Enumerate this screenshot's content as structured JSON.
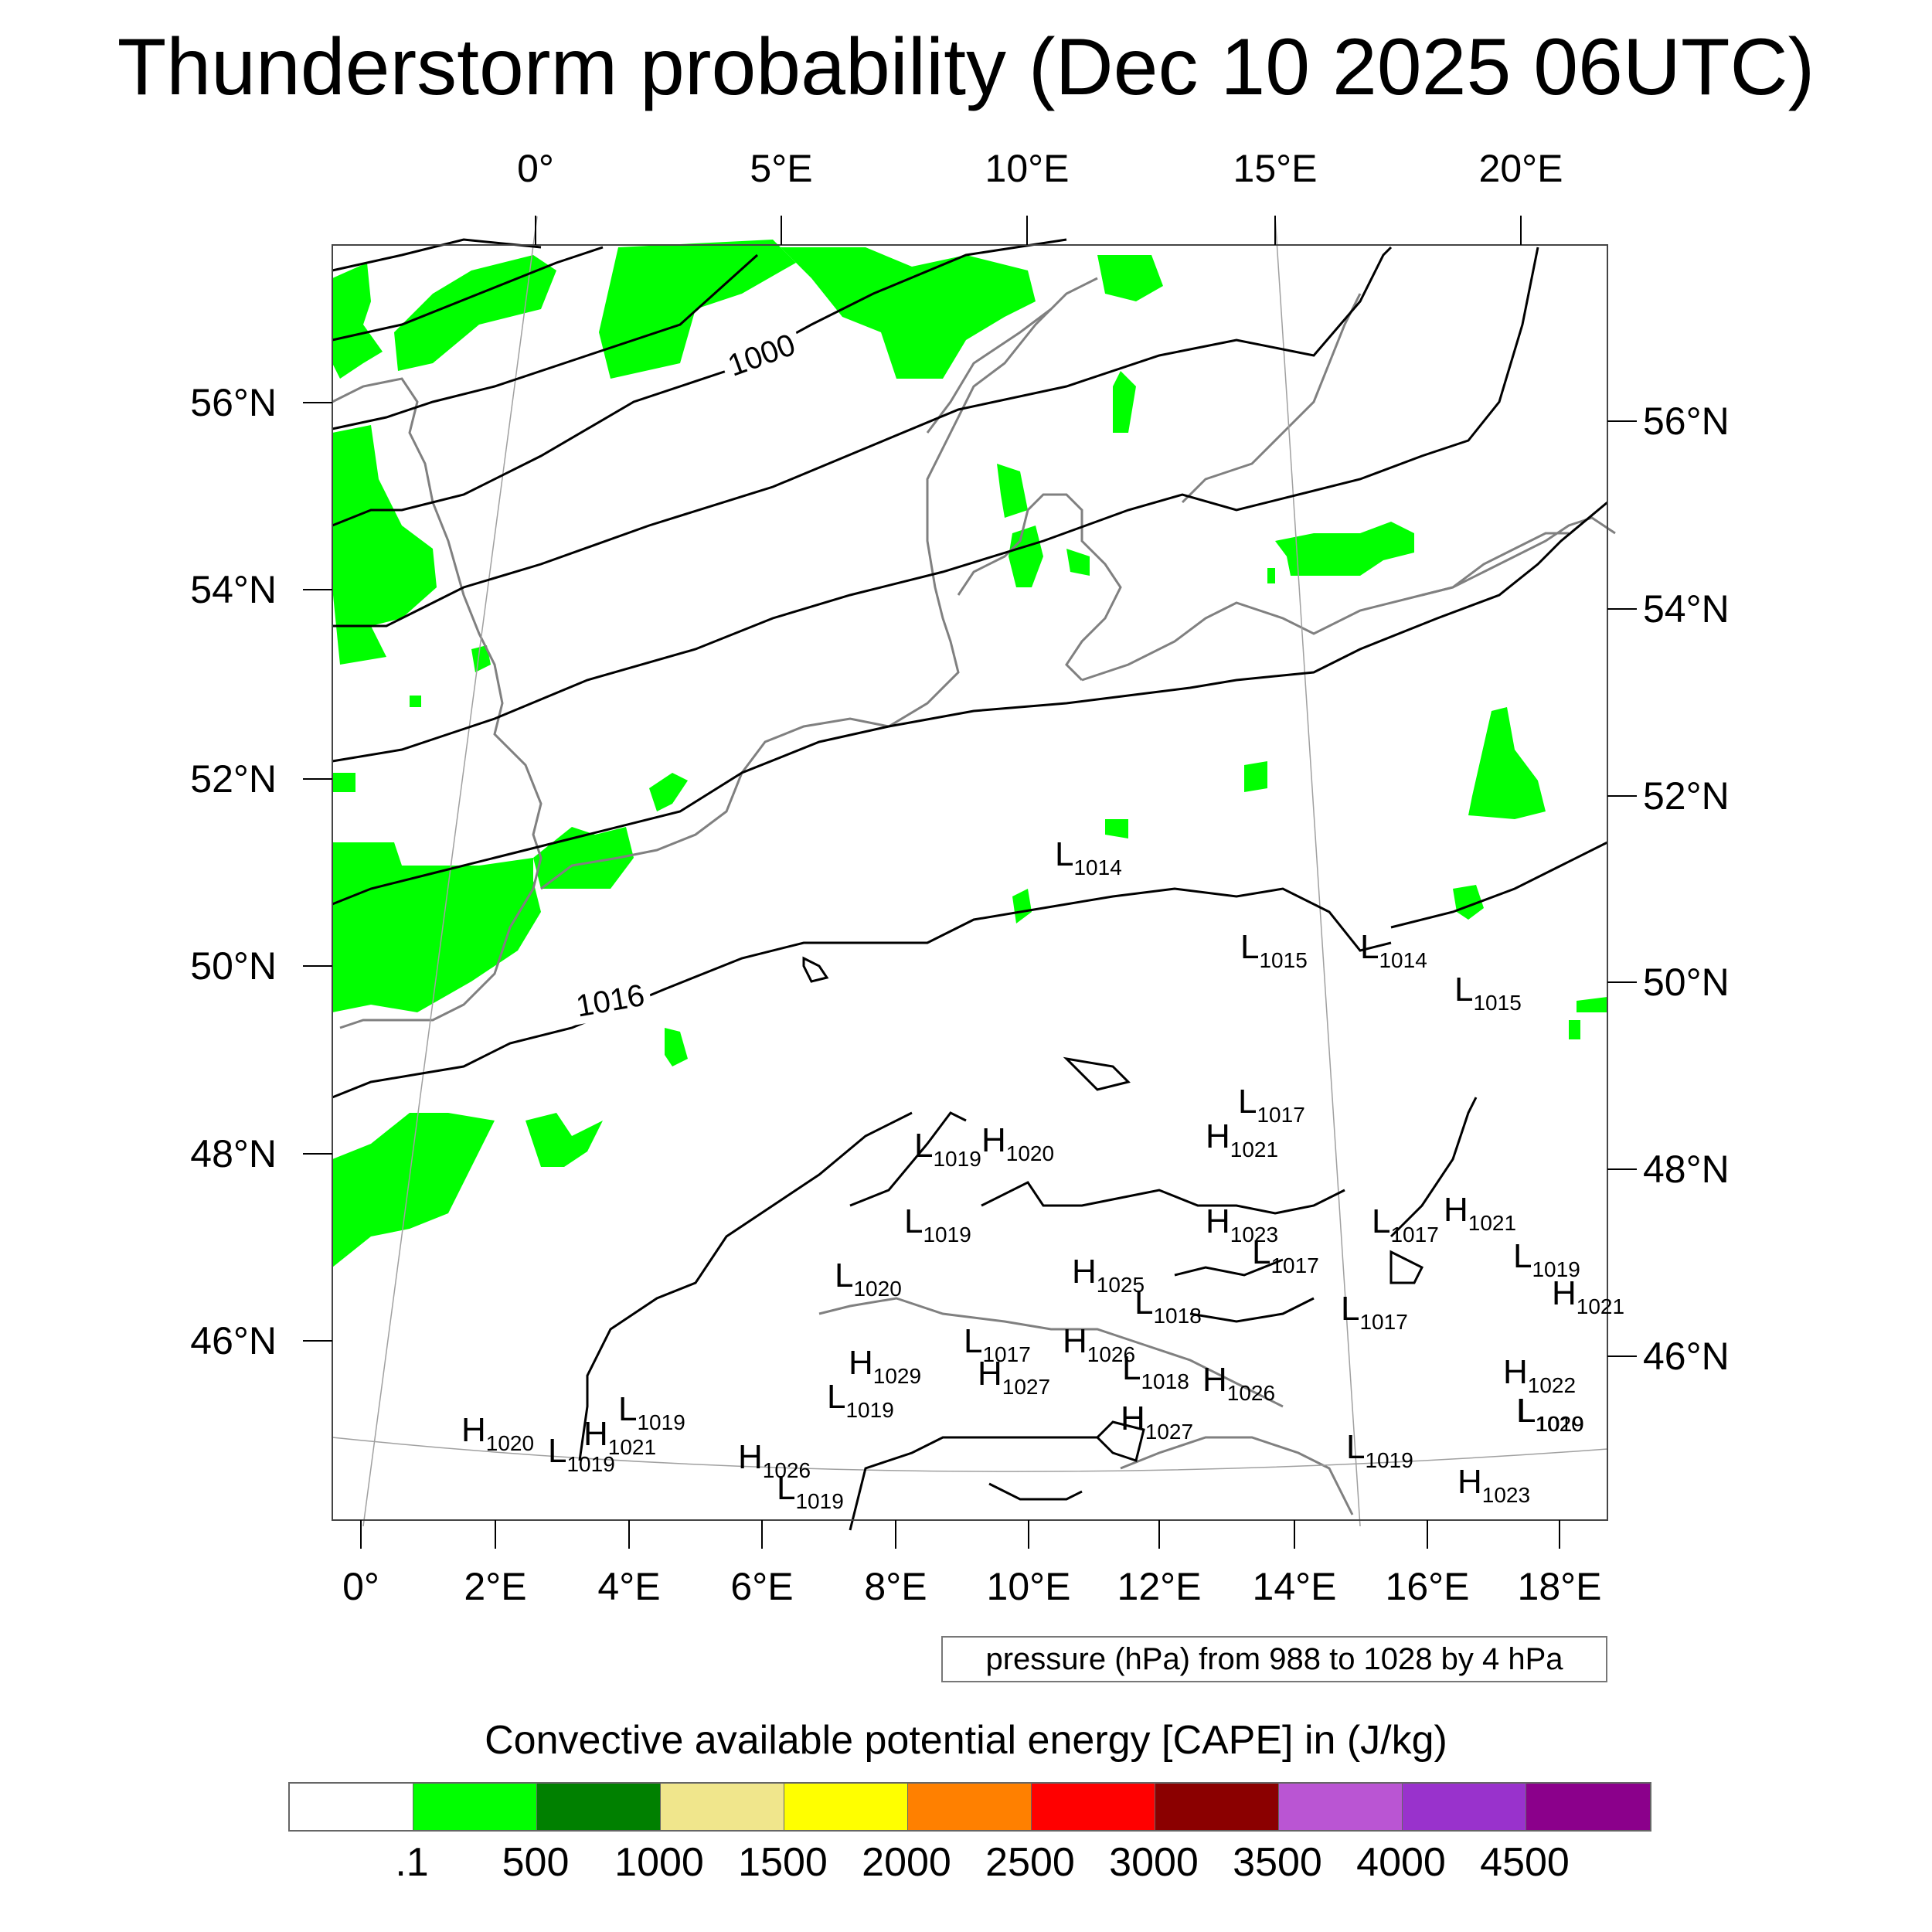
{
  "title": "Thunderstorm probability (Dec 10 2025 06UTC)",
  "map": {
    "top_lon_labels": [
      "0°",
      "5°E",
      "10°E",
      "15°E",
      "20°E"
    ],
    "bottom_lon_labels": [
      "0°",
      "2°E",
      "4°E",
      "6°E",
      "8°E",
      "10°E",
      "12°E",
      "14°E",
      "16°E",
      "18°E"
    ],
    "left_lat_labels": [
      "56°N",
      "54°N",
      "52°N",
      "50°N",
      "48°N",
      "46°N"
    ],
    "right_lat_labels": [
      "56°N",
      "54°N",
      "52°N",
      "50°N",
      "48°N",
      "46°N"
    ],
    "contour_labels": [
      "1000",
      "1016"
    ],
    "pressure_centers": [
      {
        "type": "L",
        "value": "1014"
      },
      {
        "type": "L",
        "value": "1015"
      },
      {
        "type": "L",
        "value": "1014"
      },
      {
        "type": "L",
        "value": "1015"
      },
      {
        "type": "L",
        "value": "1017"
      },
      {
        "type": "H",
        "value": "1021"
      },
      {
        "type": "H",
        "value": "1020"
      },
      {
        "type": "L",
        "value": "1019"
      },
      {
        "type": "L",
        "value": "1019"
      },
      {
        "type": "H",
        "value": "1023"
      },
      {
        "type": "L",
        "value": "1017"
      },
      {
        "type": "L",
        "value": "1017"
      },
      {
        "type": "H",
        "value": "1021"
      },
      {
        "type": "L",
        "value": "1019"
      },
      {
        "type": "L",
        "value": "1020"
      },
      {
        "type": "H",
        "value": "1025"
      },
      {
        "type": "L",
        "value": "1018"
      },
      {
        "type": "H",
        "value": "1021"
      },
      {
        "type": "L",
        "value": "1017"
      },
      {
        "type": "L",
        "value": "1017"
      },
      {
        "type": "H",
        "value": "1026"
      },
      {
        "type": "H",
        "value": "1029"
      },
      {
        "type": "H",
        "value": "1027"
      },
      {
        "type": "L",
        "value": "1018"
      },
      {
        "type": "H",
        "value": "1026"
      },
      {
        "type": "H",
        "value": "1022"
      },
      {
        "type": "L",
        "value": "1019"
      },
      {
        "type": "L",
        "value": "1019"
      },
      {
        "type": "H",
        "value": "1020"
      },
      {
        "type": "H",
        "value": "1021"
      },
      {
        "type": "L",
        "value": "1019"
      },
      {
        "type": "L",
        "value": "1019"
      },
      {
        "type": "H",
        "value": "1026"
      },
      {
        "type": "L",
        "value": "1019"
      },
      {
        "type": "H",
        "value": "1027"
      },
      {
        "type": "L",
        "value": "1020"
      },
      {
        "type": "L",
        "value": "1019"
      },
      {
        "type": "H",
        "value": "1023"
      }
    ]
  },
  "info_box": "pressure (hPa) from 988 to 1028 by 4 hPa",
  "colorbar": {
    "title": "Convective available potential energy [CAPE] in (J/kg)",
    "colors": [
      "#ffffff",
      "#00ff00",
      "#008000",
      "#f0e68c",
      "#ffff00",
      "#ff8000",
      "#ff0000",
      "#8b0000",
      "#ba55d3",
      "#9932cc",
      "#8b008b"
    ],
    "labels": [
      ".1",
      "500",
      "1000",
      "1500",
      "2000",
      "2500",
      "3000",
      "3500",
      "4000",
      "4500"
    ]
  },
  "colors": {
    "cape_low": "#00ff00",
    "coast": "#808080",
    "isobar": "#000000"
  }
}
